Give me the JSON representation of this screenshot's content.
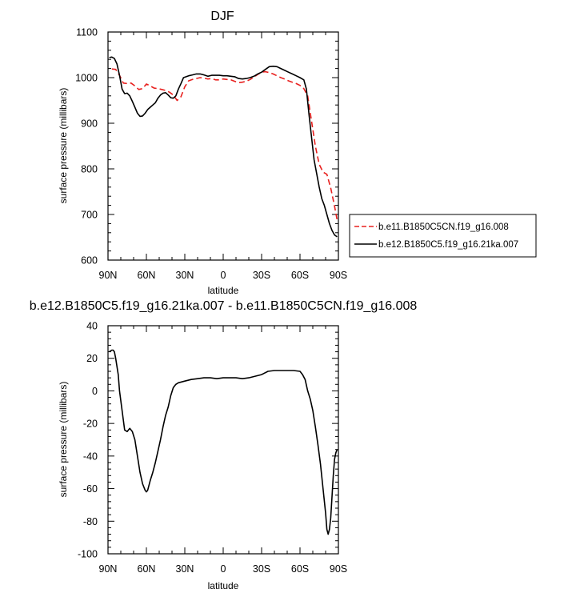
{
  "chart_data": [
    {
      "type": "line",
      "title": "DJF",
      "xlabel": "latitude",
      "ylabel": "surface pressure (millibars)",
      "xlim": [
        90,
        -90
      ],
      "ylim": [
        600,
        1100
      ],
      "x_ticks": [
        90,
        60,
        30,
        0,
        -30,
        -60,
        -90
      ],
      "x_tick_labels": [
        "90N",
        "60N",
        "30N",
        "0",
        "30S",
        "60S",
        "90S"
      ],
      "y_ticks": [
        600,
        700,
        800,
        900,
        1000,
        1100
      ],
      "y_tick_labels": [
        "600",
        "700",
        "800",
        "900",
        "1000",
        "1100"
      ],
      "legend_position": "right",
      "series": [
        {
          "name": "b.e11.B1850C5CN.f19_g16.008",
          "color": "#e8201e",
          "dash": "dashed",
          "x": [
            87,
            84,
            81,
            78,
            75,
            72,
            69,
            66,
            63,
            60,
            57,
            54,
            51,
            48,
            45,
            42,
            39,
            36,
            33,
            30,
            27,
            24,
            21,
            18,
            15,
            12,
            9,
            6,
            3,
            0,
            -3,
            -6,
            -9,
            -12,
            -15,
            -18,
            -21,
            -24,
            -27,
            -30,
            -33,
            -36,
            -39,
            -42,
            -45,
            -48,
            -51,
            -54,
            -57,
            -60,
            -63,
            -66,
            -69,
            -72,
            -75,
            -78,
            -81,
            -84,
            -87,
            -89
          ],
          "y": [
            1019,
            1018,
            1005,
            988,
            987,
            988,
            982,
            974,
            976,
            986,
            982,
            977,
            976,
            974,
            972,
            968,
            962,
            950,
            958,
            980,
            993,
            996,
            998,
            1000,
            999,
            997,
            998,
            995,
            995,
            997,
            996,
            995,
            992,
            989,
            990,
            992,
            996,
            1001,
            1007,
            1012,
            1013,
            1011,
            1008,
            1004,
            1000,
            997,
            993,
            990,
            987,
            983,
            976,
            960,
            905,
            850,
            810,
            793,
            788,
            758,
            718,
            688
          ]
        },
        {
          "name": "b.e12.B1850C5.f19_g16.21ka.007",
          "color": "#000000",
          "dash": "solid",
          "x": [
            89,
            87,
            85,
            83,
            81,
            79,
            77,
            75,
            73,
            71,
            69,
            67,
            65,
            63,
            61,
            59,
            57,
            55,
            53,
            51,
            49,
            47,
            45,
            43,
            41,
            39,
            37,
            35,
            33,
            31,
            29,
            27,
            24,
            21,
            18,
            15,
            12,
            9,
            6,
            3,
            0,
            -3,
            -6,
            -9,
            -12,
            -15,
            -18,
            -21,
            -24,
            -27,
            -30,
            -33,
            -36,
            -39,
            -42,
            -45,
            -48,
            -51,
            -54,
            -57,
            -60,
            -63,
            -65,
            -67,
            -69,
            -71,
            -73,
            -75,
            -77,
            -79,
            -81,
            -83,
            -85,
            -87,
            -89
          ],
          "y": [
            1044,
            1045,
            1042,
            1030,
            1005,
            975,
            965,
            966,
            960,
            948,
            935,
            922,
            915,
            916,
            922,
            930,
            935,
            940,
            945,
            955,
            962,
            966,
            967,
            962,
            956,
            955,
            960,
            975,
            987,
            1000,
            1002,
            1004,
            1006,
            1008,
            1008,
            1006,
            1003,
            1005,
            1005,
            1005,
            1004,
            1004,
            1003,
            1002,
            998,
            997,
            998,
            1000,
            1003,
            1008,
            1012,
            1018,
            1024,
            1025,
            1024,
            1020,
            1016,
            1012,
            1008,
            1004,
            1000,
            995,
            975,
            920,
            870,
            820,
            790,
            760,
            735,
            720,
            700,
            680,
            665,
            655,
            651
          ]
        }
      ]
    },
    {
      "type": "line",
      "title": "b.e12.B1850C5.f19_g16.21ka.007 - b.e11.B1850C5CN.f19_g16.008",
      "xlabel": "latitude",
      "ylabel": "surface pressure (millibars)",
      "xlim": [
        90,
        -90
      ],
      "ylim": [
        -100,
        40
      ],
      "x_ticks": [
        90,
        60,
        30,
        0,
        -30,
        -60,
        -90
      ],
      "x_tick_labels": [
        "90N",
        "60N",
        "30N",
        "0",
        "30S",
        "60S",
        "90S"
      ],
      "y_ticks": [
        -100,
        -80,
        -60,
        -40,
        -20,
        0,
        20,
        40
      ],
      "y_tick_labels": [
        "-100",
        "-80",
        "-60",
        "-40",
        "-20",
        "0",
        "20",
        "40"
      ],
      "series": [
        {
          "color": "#000000",
          "dash": "solid",
          "x": [
            89,
            87,
            86,
            85,
            84,
            82,
            81,
            79,
            78,
            77,
            75,
            73,
            71,
            69,
            67,
            65,
            63,
            61,
            60,
            59,
            57,
            55,
            53,
            51,
            49,
            47,
            45,
            43,
            41,
            39,
            37,
            35,
            30,
            25,
            20,
            15,
            10,
            5,
            0,
            -5,
            -10,
            -15,
            -20,
            -25,
            -30,
            -35,
            -40,
            -45,
            -50,
            -55,
            -60,
            -62,
            -64,
            -66,
            -68,
            -70,
            -72,
            -74,
            -76,
            -78,
            -80,
            -81,
            -82,
            -83,
            -84,
            -85,
            -86,
            -87,
            -88,
            -89
          ],
          "y": [
            24,
            25,
            25,
            24,
            20,
            10,
            0,
            -12,
            -18,
            -24,
            -25,
            -23,
            -25,
            -30,
            -40,
            -50,
            -57,
            -61,
            -62,
            -61,
            -55,
            -50,
            -44,
            -37,
            -30,
            -22,
            -15,
            -10,
            -3,
            2,
            4,
            5,
            6,
            7,
            7.5,
            8,
            8,
            7.5,
            8,
            8,
            8,
            7.5,
            8,
            9,
            10,
            12,
            12.5,
            12.5,
            12.5,
            12.5,
            12,
            10,
            7,
            0,
            -5,
            -12,
            -22,
            -33,
            -45,
            -60,
            -75,
            -85,
            -88,
            -85,
            -78,
            -65,
            -52,
            -42,
            -38,
            -36
          ]
        }
      ]
    }
  ]
}
